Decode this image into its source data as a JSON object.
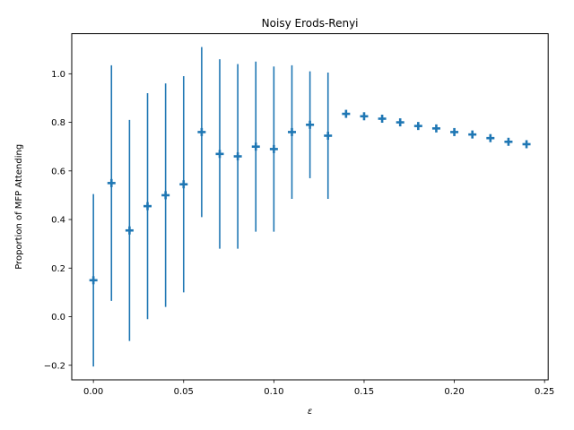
{
  "chart_data": {
    "type": "scatter",
    "title": "Noisy Erods-Renyi",
    "xlabel": "ε",
    "ylabel": "Proportion of MFP Attending",
    "xlim": [
      -0.012,
      0.252
    ],
    "ylim": [
      -0.26,
      1.165
    ],
    "xticks": [
      "0.00",
      "0.05",
      "0.10",
      "0.15",
      "0.20",
      "0.25"
    ],
    "yticks": [
      "−0.2",
      "0.0",
      "0.2",
      "0.4",
      "0.6",
      "0.8",
      "1.0"
    ],
    "grid": false,
    "marker_color": "#1f77b4",
    "marker": "plus",
    "series": [
      {
        "x": [
          0.0,
          0.01,
          0.02,
          0.03,
          0.04,
          0.05,
          0.06,
          0.07,
          0.08,
          0.09,
          0.1,
          0.11,
          0.12,
          0.13,
          0.14,
          0.15,
          0.16,
          0.17,
          0.18,
          0.19,
          0.2,
          0.21,
          0.22,
          0.23,
          0.24
        ],
        "y": [
          0.15,
          0.55,
          0.355,
          0.455,
          0.5,
          0.545,
          0.76,
          0.67,
          0.66,
          0.7,
          0.69,
          0.76,
          0.79,
          0.745,
          0.835,
          0.825,
          0.815,
          0.8,
          0.785,
          0.775,
          0.76,
          0.75,
          0.735,
          0.72,
          0.71
        ],
        "err": [
          0.355,
          0.485,
          0.455,
          0.465,
          0.46,
          0.445,
          0.35,
          0.39,
          0.38,
          0.35,
          0.34,
          0.275,
          0.22,
          0.26,
          0.0,
          0.0,
          0.0,
          0.0,
          0.0,
          0.0,
          0.0,
          0.0,
          0.0,
          0.0,
          0.0
        ]
      }
    ]
  }
}
